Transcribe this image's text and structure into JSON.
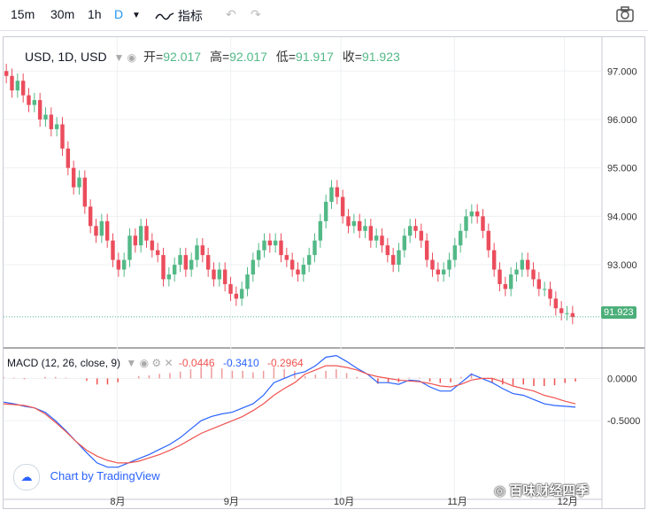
{
  "toolbar": {
    "intervals": [
      "15m",
      "30m",
      "1h",
      "D"
    ],
    "active_interval": "D",
    "indicators_label": "指标"
  },
  "legend": {
    "symbol": "USD, 1D, USD",
    "open_label": "开",
    "open": "92.017",
    "high_label": "高",
    "high": "92.017",
    "low_label": "低",
    "low": "91.917",
    "close_label": "收",
    "close": "91.923"
  },
  "macd": {
    "label": "MACD (12, 26, close, 9)",
    "hist": "-0.0446",
    "macd": "-0.3410",
    "signal": "-0.2964"
  },
  "watermark": "Chart by TradingView",
  "overlay_text": "百味财经四季",
  "colors": {
    "up": "#53b987",
    "down": "#eb4d5c",
    "macd": "#2962ff",
    "signal": "#ef5350"
  },
  "chart_data": [
    {
      "type": "candlestick",
      "title": "USD, 1D, USD",
      "y_ticks": [
        "97.000",
        "96.000",
        "95.000",
        "94.000",
        "93.000"
      ],
      "ylim": [
        91.3,
        97.7
      ],
      "x_ticks": [
        "8月",
        "9月",
        "10月",
        "11月",
        "12月"
      ],
      "last_price": "91.923",
      "x_range": [
        "2020-07-01",
        "2020-12-04"
      ],
      "close": [
        96.9,
        96.6,
        96.8,
        96.5,
        96.3,
        96.4,
        96.0,
        96.1,
        95.8,
        95.9,
        95.4,
        95.0,
        94.6,
        94.8,
        94.2,
        93.8,
        93.6,
        93.9,
        93.5,
        93.1,
        92.9,
        93.1,
        93.6,
        93.4,
        93.8,
        93.5,
        93.3,
        93.2,
        92.7,
        92.8,
        93.0,
        93.2,
        92.9,
        93.1,
        93.4,
        93.2,
        92.9,
        92.7,
        92.9,
        92.6,
        92.4,
        92.3,
        92.5,
        92.8,
        93.1,
        93.3,
        93.5,
        93.4,
        93.5,
        93.2,
        93.1,
        92.9,
        92.8,
        93.0,
        93.2,
        93.5,
        93.9,
        94.3,
        94.6,
        94.4,
        94.0,
        93.8,
        93.9,
        93.7,
        93.8,
        93.5,
        93.6,
        93.4,
        93.2,
        93.0,
        93.3,
        93.6,
        93.8,
        93.7,
        93.5,
        93.1,
        92.9,
        92.8,
        92.9,
        93.1,
        93.4,
        93.7,
        94.0,
        94.1,
        94.0,
        93.7,
        93.3,
        92.9,
        92.6,
        92.5,
        92.8,
        92.9,
        93.1,
        92.9,
        92.7,
        92.5,
        92.5,
        92.3,
        92.1,
        92.0,
        92.0,
        91.92
      ]
    },
    {
      "type": "line",
      "title": "MACD (12, 26, close, 9)",
      "y_ticks": [
        "0.0000",
        "-0.5000"
      ],
      "ylim": [
        -1.2,
        0.35
      ],
      "series": [
        {
          "name": "MACD",
          "values": [
            -0.28,
            -0.3,
            -0.33,
            -0.35,
            -0.4,
            -0.5,
            -0.62,
            -0.75,
            -0.88,
            -1.0,
            -1.05,
            -1.05,
            -1.0,
            -0.95,
            -0.9,
            -0.84,
            -0.78,
            -0.7,
            -0.6,
            -0.5,
            -0.45,
            -0.42,
            -0.4,
            -0.35,
            -0.3,
            -0.2,
            -0.05,
            0.0,
            0.05,
            0.08,
            0.15,
            0.25,
            0.27,
            0.2,
            0.12,
            0.05,
            -0.05,
            -0.05,
            -0.07,
            -0.02,
            -0.03,
            -0.1,
            -0.15,
            -0.15,
            -0.05,
            0.05,
            0.0,
            -0.05,
            -0.12,
            -0.18,
            -0.2,
            -0.25,
            -0.3,
            -0.32,
            -0.33,
            -0.34
          ]
        },
        {
          "name": "Signal",
          "values": [
            -0.3,
            -0.31,
            -0.32,
            -0.35,
            -0.42,
            -0.52,
            -0.63,
            -0.75,
            -0.85,
            -0.92,
            -0.97,
            -1.0,
            -1.0,
            -0.98,
            -0.94,
            -0.9,
            -0.85,
            -0.79,
            -0.72,
            -0.65,
            -0.6,
            -0.55,
            -0.5,
            -0.45,
            -0.38,
            -0.3,
            -0.2,
            -0.12,
            -0.05,
            0.05,
            0.1,
            0.15,
            0.15,
            0.13,
            0.1,
            0.05,
            0.02,
            0.0,
            -0.02,
            -0.03,
            -0.04,
            -0.06,
            -0.09,
            -0.1,
            -0.07,
            -0.02,
            0.0,
            0.0,
            -0.04,
            -0.09,
            -0.12,
            -0.15,
            -0.2,
            -0.23,
            -0.27,
            -0.3
          ]
        }
      ]
    }
  ]
}
